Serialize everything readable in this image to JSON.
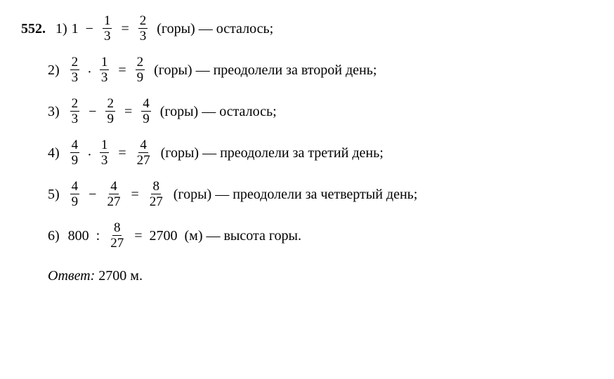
{
  "problem_number": "552.",
  "steps": [
    {
      "label": "1)",
      "lead_int": "1",
      "op1": "−",
      "f1": {
        "n": "1",
        "d": "3"
      },
      "op2": "=",
      "f2": {
        "n": "2",
        "d": "3"
      },
      "text": "(горы) — осталось;"
    },
    {
      "label": "2)",
      "f1": {
        "n": "2",
        "d": "3"
      },
      "op1": "·",
      "f2": {
        "n": "1",
        "d": "3"
      },
      "op2": "=",
      "f3": {
        "n": "2",
        "d": "9"
      },
      "text": "(горы) — преодолели за второй день;"
    },
    {
      "label": "3)",
      "f1": {
        "n": "2",
        "d": "3"
      },
      "op1": "−",
      "f2": {
        "n": "2",
        "d": "9"
      },
      "op2": "=",
      "f3": {
        "n": "4",
        "d": "9"
      },
      "text": "(горы) — осталось;"
    },
    {
      "label": "4)",
      "f1": {
        "n": "4",
        "d": "9"
      },
      "op1": "·",
      "f2": {
        "n": "1",
        "d": "3"
      },
      "op2": "=",
      "f3": {
        "n": "4",
        "d": "27"
      },
      "text": "(горы) — преодолели за третий день;"
    },
    {
      "label": "5)",
      "f1": {
        "n": "4",
        "d": "9"
      },
      "op1": "−",
      "f2": {
        "n": "4",
        "d": "27"
      },
      "op2": "=",
      "f3": {
        "n": "8",
        "d": "27"
      },
      "text": "(горы) — преодолели за четвертый день;"
    },
    {
      "label": "6)",
      "lead_int": "800",
      "op1": ":",
      "f1": {
        "n": "8",
        "d": "27"
      },
      "op2": "=",
      "result_int": "2700",
      "text": "(м) — высота горы."
    }
  ],
  "answer_label": "Ответ:",
  "answer_value": "2700 м."
}
